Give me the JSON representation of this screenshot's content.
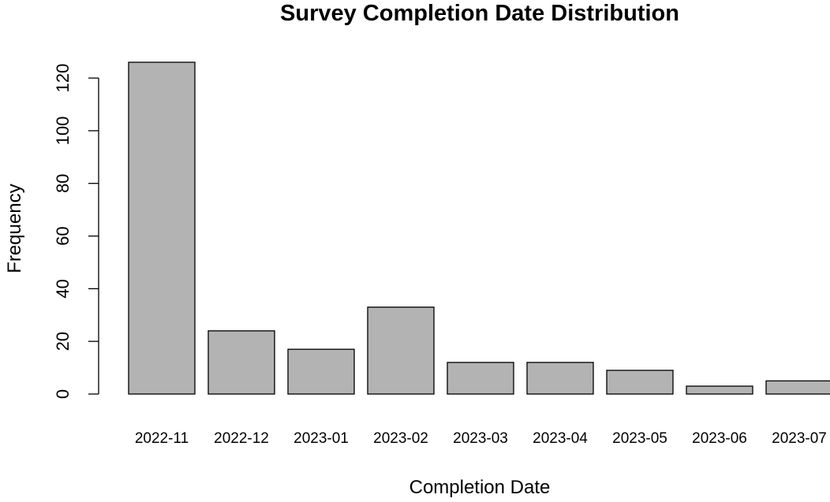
{
  "chart_data": {
    "type": "bar",
    "title": "Survey Completion Date Distribution",
    "xlabel": "Completion Date",
    "ylabel": "Frequency",
    "categories": [
      "2022-11",
      "2022-12",
      "2023-01",
      "2023-02",
      "2023-03",
      "2023-04",
      "2023-05",
      "2023-06",
      "2023-07"
    ],
    "values": [
      126,
      24,
      17,
      33,
      12,
      12,
      9,
      3,
      5
    ],
    "ylim": [
      0,
      126
    ],
    "yticks": [
      0,
      20,
      40,
      60,
      80,
      100,
      120
    ],
    "ytick_labels": [
      "0",
      "20",
      "40",
      "60",
      "80",
      "100",
      "120"
    ],
    "grid": false,
    "legend": "none",
    "colors": {
      "bar_fill": "#b3b3b3",
      "bar_stroke": "#000000",
      "axis": "#000000",
      "background": "#ffffff"
    }
  }
}
